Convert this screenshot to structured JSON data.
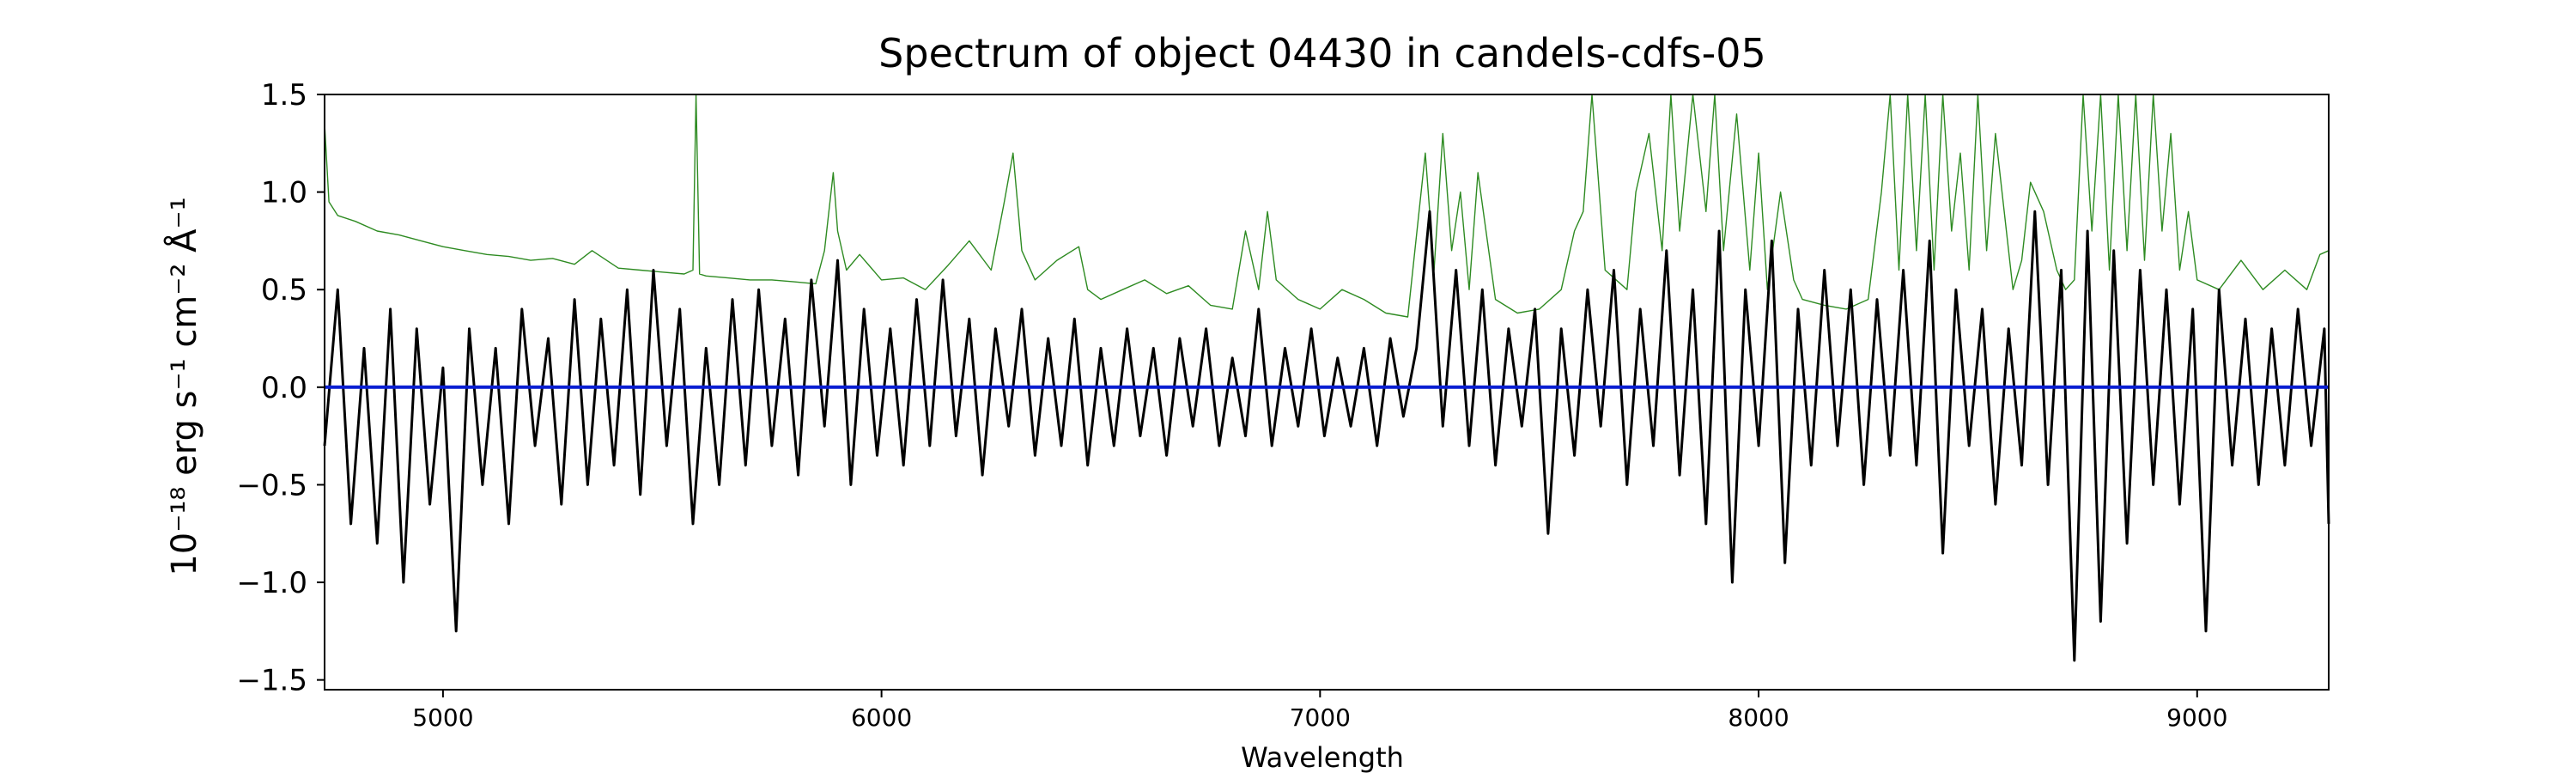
{
  "chart_data": {
    "type": "line",
    "title": "Spectrum of object 04430 in candels-cdfs-05",
    "xlabel": "Wavelength",
    "ylabel": "10⁻¹⁸ erg s⁻¹ cm⁻² Å⁻¹",
    "xlim": [
      4730,
      9300
    ],
    "ylim": [
      -1.55,
      1.5
    ],
    "x_ticks": [
      5000,
      6000,
      7000,
      8000,
      9000
    ],
    "y_ticks": [
      -1.5,
      -1.0,
      -0.5,
      0.0,
      0.5,
      1.0,
      1.5
    ],
    "x_tick_labels": [
      "5000",
      "6000",
      "7000",
      "8000",
      "9000"
    ],
    "y_tick_labels": [
      "−1.5",
      "−1.0",
      "−0.5",
      "0.0",
      "0.5",
      "1.0",
      "1.5"
    ],
    "grid": false,
    "series": [
      {
        "color": "#2e8b22",
        "role": "noise",
        "x": [
          4730,
          4740,
          4760,
          4800,
          4850,
          4900,
          4950,
          5000,
          5050,
          5100,
          5150,
          5200,
          5250,
          5300,
          5340,
          5400,
          5450,
          5500,
          5550,
          5570,
          5577,
          5585,
          5600,
          5650,
          5700,
          5750,
          5800,
          5850,
          5870,
          5890,
          5900,
          5920,
          5950,
          6000,
          6050,
          6100,
          6150,
          6200,
          6250,
          6280,
          6300,
          6320,
          6350,
          6400,
          6450,
          6470,
          6500,
          6550,
          6600,
          6650,
          6700,
          6750,
          6800,
          6830,
          6860,
          6880,
          6900,
          6950,
          7000,
          7050,
          7100,
          7150,
          7200,
          7240,
          7260,
          7280,
          7300,
          7320,
          7340,
          7360,
          7400,
          7450,
          7500,
          7550,
          7580,
          7600,
          7620,
          7650,
          7700,
          7720,
          7750,
          7780,
          7800,
          7820,
          7850,
          7880,
          7900,
          7920,
          7950,
          7980,
          8000,
          8020,
          8050,
          8080,
          8100,
          8150,
          8200,
          8250,
          8280,
          8300,
          8320,
          8340,
          8360,
          8380,
          8400,
          8420,
          8440,
          8460,
          8480,
          8500,
          8520,
          8540,
          8560,
          8580,
          8600,
          8620,
          8650,
          8680,
          8700,
          8720,
          8740,
          8760,
          8780,
          8800,
          8820,
          8840,
          8860,
          8880,
          8900,
          8920,
          8940,
          8960,
          8980,
          9000,
          9050,
          9100,
          9150,
          9200,
          9250,
          9280,
          9300
        ],
        "y": [
          1.35,
          0.95,
          0.88,
          0.85,
          0.8,
          0.78,
          0.75,
          0.72,
          0.7,
          0.68,
          0.67,
          0.65,
          0.66,
          0.63,
          0.7,
          0.61,
          0.6,
          0.59,
          0.58,
          0.6,
          1.5,
          0.58,
          0.57,
          0.56,
          0.55,
          0.55,
          0.54,
          0.53,
          0.7,
          1.1,
          0.8,
          0.6,
          0.68,
          0.55,
          0.56,
          0.5,
          0.62,
          0.75,
          0.6,
          0.95,
          1.2,
          0.7,
          0.55,
          0.65,
          0.72,
          0.5,
          0.45,
          0.5,
          0.55,
          0.48,
          0.52,
          0.42,
          0.4,
          0.8,
          0.5,
          0.9,
          0.55,
          0.45,
          0.4,
          0.5,
          0.45,
          0.38,
          0.36,
          1.2,
          0.6,
          1.3,
          0.7,
          1.0,
          0.5,
          1.1,
          0.45,
          0.38,
          0.4,
          0.5,
          0.8,
          0.9,
          1.5,
          0.6,
          0.5,
          1.0,
          1.3,
          0.7,
          1.5,
          0.8,
          1.5,
          0.9,
          1.5,
          0.7,
          1.4,
          0.6,
          1.2,
          0.5,
          1.0,
          0.55,
          0.45,
          0.42,
          0.4,
          0.45,
          1.0,
          1.5,
          0.6,
          1.5,
          0.7,
          1.5,
          0.6,
          1.5,
          0.8,
          1.2,
          0.6,
          1.5,
          0.7,
          1.3,
          0.9,
          0.5,
          0.65,
          1.05,
          0.9,
          0.6,
          0.5,
          0.55,
          1.5,
          0.8,
          1.5,
          0.6,
          1.5,
          0.7,
          1.5,
          0.65,
          1.5,
          0.8,
          1.3,
          0.6,
          0.9,
          0.55,
          0.5,
          0.65,
          0.5,
          0.6,
          0.5,
          0.68,
          0.7
        ]
      },
      {
        "color": "#000000",
        "role": "flux",
        "x": [
          4730,
          4760,
          4790,
          4820,
          4850,
          4880,
          4910,
          4940,
          4970,
          5000,
          5030,
          5060,
          5090,
          5120,
          5150,
          5180,
          5210,
          5240,
          5270,
          5300,
          5330,
          5360,
          5390,
          5420,
          5450,
          5480,
          5510,
          5540,
          5570,
          5600,
          5630,
          5660,
          5690,
          5720,
          5750,
          5780,
          5810,
          5840,
          5870,
          5900,
          5930,
          5960,
          5990,
          6020,
          6050,
          6080,
          6110,
          6140,
          6170,
          6200,
          6230,
          6260,
          6290,
          6320,
          6350,
          6380,
          6410,
          6440,
          6470,
          6500,
          6530,
          6560,
          6590,
          6620,
          6650,
          6680,
          6710,
          6740,
          6770,
          6800,
          6830,
          6860,
          6890,
          6920,
          6950,
          6980,
          7010,
          7040,
          7070,
          7100,
          7130,
          7160,
          7190,
          7220,
          7250,
          7280,
          7310,
          7340,
          7370,
          7400,
          7430,
          7460,
          7490,
          7520,
          7550,
          7580,
          7610,
          7640,
          7670,
          7700,
          7730,
          7760,
          7790,
          7820,
          7850,
          7880,
          7910,
          7940,
          7970,
          8000,
          8030,
          8060,
          8090,
          8120,
          8150,
          8180,
          8210,
          8240,
          8270,
          8300,
          8330,
          8360,
          8390,
          8420,
          8450,
          8480,
          8510,
          8540,
          8570,
          8600,
          8630,
          8660,
          8690,
          8720,
          8750,
          8780,
          8810,
          8840,
          8870,
          8900,
          8930,
          8960,
          8990,
          9020,
          9050,
          9080,
          9110,
          9140,
          9170,
          9200,
          9230,
          9260,
          9290,
          9300
        ],
        "y": [
          -0.3,
          0.5,
          -0.7,
          0.2,
          -0.8,
          0.4,
          -1.0,
          0.3,
          -0.6,
          0.1,
          -1.25,
          0.3,
          -0.5,
          0.2,
          -0.7,
          0.4,
          -0.3,
          0.25,
          -0.6,
          0.45,
          -0.5,
          0.35,
          -0.4,
          0.5,
          -0.55,
          0.6,
          -0.3,
          0.4,
          -0.7,
          0.2,
          -0.5,
          0.45,
          -0.4,
          0.5,
          -0.3,
          0.35,
          -0.45,
          0.55,
          -0.2,
          0.65,
          -0.5,
          0.4,
          -0.35,
          0.3,
          -0.4,
          0.45,
          -0.3,
          0.55,
          -0.25,
          0.35,
          -0.45,
          0.3,
          -0.2,
          0.4,
          -0.35,
          0.25,
          -0.3,
          0.35,
          -0.4,
          0.2,
          -0.3,
          0.3,
          -0.25,
          0.2,
          -0.35,
          0.25,
          -0.2,
          0.3,
          -0.3,
          0.15,
          -0.25,
          0.4,
          -0.3,
          0.2,
          -0.2,
          0.3,
          -0.25,
          0.15,
          -0.2,
          0.2,
          -0.3,
          0.25,
          -0.15,
          0.2,
          0.9,
          -0.2,
          0.6,
          -0.3,
          0.5,
          -0.4,
          0.3,
          -0.2,
          0.4,
          -0.75,
          0.3,
          -0.35,
          0.5,
          -0.2,
          0.6,
          -0.5,
          0.4,
          -0.3,
          0.7,
          -0.45,
          0.5,
          -0.7,
          0.8,
          -1.0,
          0.5,
          -0.3,
          0.75,
          -0.9,
          0.4,
          -0.4,
          0.6,
          -0.3,
          0.5,
          -0.5,
          0.45,
          -0.35,
          0.6,
          -0.4,
          0.75,
          -0.85,
          0.5,
          -0.3,
          0.4,
          -0.6,
          0.3,
          -0.4,
          0.9,
          -0.5,
          0.6,
          -1.4,
          0.8,
          -1.2,
          0.7,
          -0.8,
          0.6,
          -0.5,
          0.5,
          -0.6,
          0.4,
          -1.25,
          0.5,
          -0.4,
          0.35,
          -0.5,
          0.3,
          -0.4,
          0.4,
          -0.3,
          0.3,
          -0.7
        ]
      },
      {
        "color": "#0a1fd2",
        "role": "zero-line",
        "x": [
          4730,
          9300
        ],
        "y": [
          0.0,
          0.0
        ]
      }
    ]
  }
}
